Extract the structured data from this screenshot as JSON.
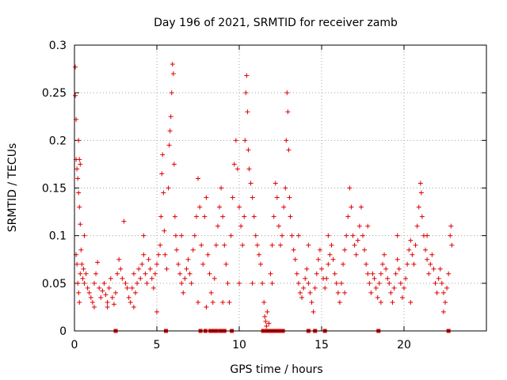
{
  "chart_data": {
    "type": "scatter",
    "title": "Day 196 of 2021, SRMTID for receiver zamb",
    "xlabel": "GPS time / hours",
    "ylabel": "SRMTID / TECUs",
    "xlim": [
      0,
      25
    ],
    "ylim": [
      0,
      0.3
    ],
    "xticks": [
      "0",
      "5",
      "10",
      "15",
      "20"
    ],
    "yticks": [
      "0",
      "0.05",
      "0.1",
      "0.15",
      "0.2",
      "0.25",
      "0.3"
    ],
    "grid": true,
    "marker": "plus",
    "color": "#e00000",
    "series": [
      {
        "name": "SRMTID",
        "points": [
          [
            0.05,
            0.277
          ],
          [
            0.05,
            0.247
          ],
          [
            0.1,
            0.222
          ],
          [
            0.1,
            0.18
          ],
          [
            0.15,
            0.17
          ],
          [
            0.2,
            0.16
          ],
          [
            0.25,
            0.2
          ],
          [
            0.3,
            0.18
          ],
          [
            0.35,
            0.175
          ],
          [
            0.25,
            0.145
          ],
          [
            0.3,
            0.13
          ],
          [
            0.35,
            0.112
          ],
          [
            0.1,
            0.08
          ],
          [
            0.15,
            0.07
          ],
          [
            0.2,
            0.05
          ],
          [
            0.25,
            0.04
          ],
          [
            0.3,
            0.03
          ],
          [
            0.35,
            0.06
          ],
          [
            0.4,
            0.085
          ],
          [
            0.45,
            0.07
          ],
          [
            0.5,
            0.055
          ],
          [
            0.55,
            0.065
          ],
          [
            0.6,
            0.05
          ],
          [
            0.7,
            0.06
          ],
          [
            0.8,
            0.045
          ],
          [
            0.9,
            0.04
          ],
          [
            1.0,
            0.035
          ],
          [
            1.1,
            0.03
          ],
          [
            1.2,
            0.05
          ],
          [
            1.3,
            0.06
          ],
          [
            1.4,
            0.072
          ],
          [
            1.5,
            0.045
          ],
          [
            1.6,
            0.035
          ],
          [
            1.7,
            0.042
          ],
          [
            1.8,
            0.05
          ],
          [
            1.9,
            0.038
          ],
          [
            2.0,
            0.03
          ],
          [
            2.1,
            0.045
          ],
          [
            2.2,
            0.055
          ],
          [
            2.3,
            0.035
          ],
          [
            2.4,
            0.028
          ],
          [
            2.5,
            0.04
          ],
          [
            2.6,
            0.06
          ],
          [
            2.7,
            0.075
          ],
          [
            2.8,
            0.065
          ],
          [
            2.9,
            0.055
          ],
          [
            3.0,
            0.115
          ],
          [
            3.1,
            0.05
          ],
          [
            3.2,
            0.045
          ],
          [
            3.3,
            0.035
          ],
          [
            3.4,
            0.03
          ],
          [
            3.5,
            0.045
          ],
          [
            3.6,
            0.06
          ],
          [
            3.7,
            0.04
          ],
          [
            3.8,
            0.05
          ],
          [
            3.9,
            0.065
          ],
          [
            4.0,
            0.055
          ],
          [
            4.1,
            0.07
          ],
          [
            4.2,
            0.08
          ],
          [
            4.3,
            0.06
          ],
          [
            4.4,
            0.05
          ],
          [
            4.5,
            0.075
          ],
          [
            4.6,
            0.065
          ],
          [
            4.7,
            0.055
          ],
          [
            4.8,
            0.045
          ],
          [
            4.9,
            0.06
          ],
          [
            5.0,
            0.07
          ],
          [
            5.1,
            0.08
          ],
          [
            5.2,
            0.09
          ],
          [
            5.25,
            0.12
          ],
          [
            5.3,
            0.165
          ],
          [
            5.35,
            0.185
          ],
          [
            5.4,
            0.145
          ],
          [
            5.45,
            0.105
          ],
          [
            5.5,
            0.08
          ],
          [
            5.6,
            0.065
          ],
          [
            5.7,
            0.15
          ],
          [
            5.75,
            0.195
          ],
          [
            5.8,
            0.21
          ],
          [
            5.85,
            0.225
          ],
          [
            5.9,
            0.25
          ],
          [
            5.95,
            0.28
          ],
          [
            6.0,
            0.27
          ],
          [
            6.05,
            0.175
          ],
          [
            6.1,
            0.12
          ],
          [
            6.15,
            0.1
          ],
          [
            6.2,
            0.085
          ],
          [
            6.3,
            0.07
          ],
          [
            6.4,
            0.06
          ],
          [
            6.5,
            0.05
          ],
          [
            6.6,
            0.04
          ],
          [
            6.7,
            0.055
          ],
          [
            6.8,
            0.065
          ],
          [
            6.9,
            0.075
          ],
          [
            7.0,
            0.06
          ],
          [
            7.1,
            0.05
          ],
          [
            7.2,
            0.085
          ],
          [
            7.3,
            0.1
          ],
          [
            7.4,
            0.12
          ],
          [
            7.5,
            0.16
          ],
          [
            7.6,
            0.13
          ],
          [
            7.7,
            0.09
          ],
          [
            7.8,
            0.07
          ],
          [
            7.9,
            0.12
          ],
          [
            8.0,
            0.14
          ],
          [
            8.1,
            0.08
          ],
          [
            8.2,
            0.06
          ],
          [
            8.3,
            0.04
          ],
          [
            8.4,
            0.03
          ],
          [
            8.5,
            0.055
          ],
          [
            8.6,
            0.09
          ],
          [
            8.7,
            0.11
          ],
          [
            8.8,
            0.13
          ],
          [
            8.9,
            0.15
          ],
          [
            9.0,
            0.12
          ],
          [
            9.1,
            0.09
          ],
          [
            9.2,
            0.07
          ],
          [
            9.3,
            0.05
          ],
          [
            9.4,
            0.03
          ],
          [
            9.5,
            0.1
          ],
          [
            9.6,
            0.14
          ],
          [
            9.7,
            0.175
          ],
          [
            9.8,
            0.2
          ],
          [
            9.9,
            0.17
          ],
          [
            10.0,
            0.13
          ],
          [
            10.1,
            0.11
          ],
          [
            10.2,
            0.09
          ],
          [
            10.3,
            0.12
          ],
          [
            10.35,
            0.2
          ],
          [
            10.4,
            0.25
          ],
          [
            10.45,
            0.268
          ],
          [
            10.5,
            0.23
          ],
          [
            10.55,
            0.19
          ],
          [
            10.6,
            0.17
          ],
          [
            10.7,
            0.155
          ],
          [
            10.8,
            0.14
          ],
          [
            10.9,
            0.12
          ],
          [
            11.0,
            0.1
          ],
          [
            11.1,
            0.09
          ],
          [
            11.2,
            0.08
          ],
          [
            11.3,
            0.07
          ],
          [
            11.4,
            0.05
          ],
          [
            11.5,
            0.03
          ],
          [
            11.55,
            0.015
          ],
          [
            11.6,
            0.01
          ],
          [
            11.65,
            0.005
          ],
          [
            11.7,
            0.02
          ],
          [
            11.8,
            0.008
          ],
          [
            11.9,
            0.06
          ],
          [
            12.0,
            0.09
          ],
          [
            12.1,
            0.12
          ],
          [
            12.2,
            0.155
          ],
          [
            12.3,
            0.14
          ],
          [
            12.4,
            0.11
          ],
          [
            12.5,
            0.09
          ],
          [
            12.6,
            0.1
          ],
          [
            12.7,
            0.13
          ],
          [
            12.8,
            0.15
          ],
          [
            12.85,
            0.2
          ],
          [
            12.9,
            0.25
          ],
          [
            12.95,
            0.23
          ],
          [
            13.0,
            0.19
          ],
          [
            13.05,
            0.14
          ],
          [
            13.1,
            0.12
          ],
          [
            13.2,
            0.1
          ],
          [
            13.3,
            0.085
          ],
          [
            13.4,
            0.075
          ],
          [
            13.5,
            0.06
          ],
          [
            13.6,
            0.05
          ],
          [
            13.7,
            0.04
          ],
          [
            13.8,
            0.035
          ],
          [
            13.9,
            0.045
          ],
          [
            14.0,
            0.055
          ],
          [
            14.1,
            0.065
          ],
          [
            14.2,
            0.05
          ],
          [
            14.3,
            0.04
          ],
          [
            14.4,
            0.03
          ],
          [
            14.5,
            0.02
          ],
          [
            14.6,
            0.045
          ],
          [
            14.7,
            0.06
          ],
          [
            14.8,
            0.075
          ],
          [
            14.9,
            0.085
          ],
          [
            15.0,
            0.065
          ],
          [
            15.1,
            0.055
          ],
          [
            15.2,
            0.045
          ],
          [
            15.3,
            0.055
          ],
          [
            15.4,
            0.07
          ],
          [
            15.5,
            0.08
          ],
          [
            15.6,
            0.09
          ],
          [
            15.7,
            0.075
          ],
          [
            15.8,
            0.06
          ],
          [
            15.9,
            0.05
          ],
          [
            16.0,
            0.04
          ],
          [
            16.1,
            0.03
          ],
          [
            16.2,
            0.05
          ],
          [
            16.3,
            0.07
          ],
          [
            16.4,
            0.085
          ],
          [
            16.5,
            0.1
          ],
          [
            16.6,
            0.12
          ],
          [
            16.7,
            0.15
          ],
          [
            16.8,
            0.13
          ],
          [
            16.9,
            0.1
          ],
          [
            17.0,
            0.09
          ],
          [
            17.1,
            0.08
          ],
          [
            17.2,
            0.095
          ],
          [
            17.3,
            0.11
          ],
          [
            17.4,
            0.13
          ],
          [
            17.5,
            0.1
          ],
          [
            17.6,
            0.085
          ],
          [
            17.7,
            0.07
          ],
          [
            17.8,
            0.06
          ],
          [
            17.9,
            0.05
          ],
          [
            18.0,
            0.04
          ],
          [
            18.1,
            0.06
          ],
          [
            18.2,
            0.055
          ],
          [
            18.3,
            0.045
          ],
          [
            18.4,
            0.035
          ],
          [
            18.5,
            0.05
          ],
          [
            18.6,
            0.06
          ],
          [
            18.7,
            0.07
          ],
          [
            18.8,
            0.08
          ],
          [
            18.9,
            0.065
          ],
          [
            19.0,
            0.055
          ],
          [
            19.1,
            0.05
          ],
          [
            19.2,
            0.04
          ],
          [
            19.3,
            0.03
          ],
          [
            19.4,
            0.045
          ],
          [
            19.5,
            0.06
          ],
          [
            19.6,
            0.075
          ],
          [
            19.7,
            0.065
          ],
          [
            19.8,
            0.05
          ],
          [
            19.9,
            0.035
          ],
          [
            20.0,
            0.045
          ],
          [
            20.1,
            0.055
          ],
          [
            20.2,
            0.07
          ],
          [
            20.3,
            0.085
          ],
          [
            20.4,
            0.095
          ],
          [
            20.5,
            0.08
          ],
          [
            20.6,
            0.07
          ],
          [
            20.7,
            0.09
          ],
          [
            20.8,
            0.11
          ],
          [
            20.9,
            0.13
          ],
          [
            21.0,
            0.155
          ],
          [
            21.05,
            0.145
          ],
          [
            21.1,
            0.12
          ],
          [
            21.2,
            0.1
          ],
          [
            21.3,
            0.085
          ],
          [
            21.4,
            0.075
          ],
          [
            21.5,
            0.06
          ],
          [
            21.6,
            0.07
          ],
          [
            21.7,
            0.08
          ],
          [
            21.8,
            0.065
          ],
          [
            21.9,
            0.05
          ],
          [
            22.0,
            0.04
          ],
          [
            22.1,
            0.055
          ],
          [
            22.2,
            0.065
          ],
          [
            22.3,
            0.05
          ],
          [
            22.4,
            0.04
          ],
          [
            22.5,
            0.03
          ],
          [
            22.6,
            0.045
          ],
          [
            22.7,
            0.06
          ],
          [
            22.8,
            0.1
          ],
          [
            22.85,
            0.11
          ],
          [
            22.9,
            0.09
          ],
          [
            0.6,
            0.1
          ],
          [
            1.2,
            0.025
          ],
          [
            2.0,
            0.025
          ],
          [
            3.6,
            0.025
          ],
          [
            4.2,
            0.1
          ],
          [
            5.0,
            0.02
          ],
          [
            6.5,
            0.1
          ],
          [
            7.5,
            0.03
          ],
          [
            8.0,
            0.025
          ],
          [
            9.0,
            0.03
          ],
          [
            10.0,
            0.05
          ],
          [
            10.8,
            0.05
          ],
          [
            12.0,
            0.05
          ],
          [
            13.6,
            0.1
          ],
          [
            14.2,
            0.09
          ],
          [
            15.4,
            0.1
          ],
          [
            16.4,
            0.04
          ],
          [
            17.8,
            0.11
          ],
          [
            18.6,
            0.03
          ],
          [
            19.6,
            0.1
          ],
          [
            20.4,
            0.03
          ],
          [
            21.4,
            0.1
          ],
          [
            22.4,
            0.02
          ]
        ]
      }
    ],
    "zero_markers_x": [
      2.5,
      5.55,
      7.65,
      7.95,
      8.25,
      8.45,
      8.6,
      8.85,
      9.0,
      9.1,
      9.55,
      11.45,
      11.6,
      11.75,
      11.95,
      12.1,
      12.3,
      12.45,
      12.55,
      12.65,
      14.2,
      14.6,
      15.2,
      18.45,
      22.7
    ]
  }
}
